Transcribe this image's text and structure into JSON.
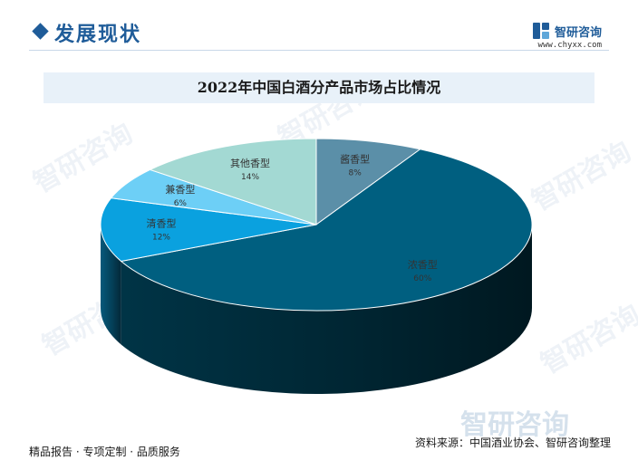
{
  "header": {
    "section_title": "发展现状",
    "brand_name": "智研咨询",
    "brand_url": "www.chyxx.com"
  },
  "footer": {
    "tagline": "精品报告 · 专项定制 · 品质服务",
    "source": "资料来源：中国酒业协会、智研咨询整理"
  },
  "watermark": {
    "text": "智研咨询"
  },
  "colors": {
    "brand": "#1f5c99",
    "title_band": "#e8f1f9"
  },
  "chart_data": {
    "type": "pie",
    "title": "2022年中国白酒分产品市场占比情况",
    "style": "3d",
    "slices": [
      {
        "label": "酱香型",
        "value": 8,
        "display": "8%",
        "color": "#5b8fa8"
      },
      {
        "label": "浓香型",
        "value": 60,
        "display": "60%",
        "color": "#005f80"
      },
      {
        "label": "清香型",
        "value": 12,
        "display": "12%",
        "color": "#0aa1df"
      },
      {
        "label": "兼香型",
        "value": 6,
        "display": "6%",
        "color": "#6dcff6"
      },
      {
        "label": "其他香型",
        "value": 14,
        "display": "14%",
        "color": "#a3d9d3"
      }
    ]
  }
}
